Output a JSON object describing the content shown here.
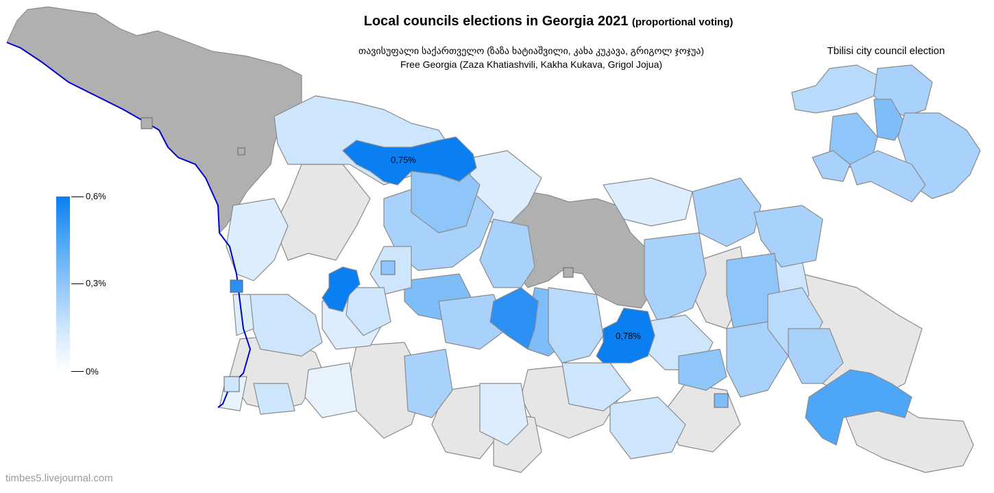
{
  "title": {
    "main": "Local councils elections in Georgia 2021",
    "note": "(proportional voting)"
  },
  "party": {
    "name_ka": "თავისუფალი საქართველო (ზაზა ხატიაშვილი, კახა კუკავა, გრიგოლ ჯოჯუა)",
    "name_en": "Free Georgia (Zaza Khatiashvili, Kakha Kukava, Grigol Jojua)"
  },
  "inset": {
    "title": "Tbilisi city council election"
  },
  "legend": {
    "max_label": "0,6%",
    "mid_label": "0,3%",
    "min_label": "0%",
    "colors": [
      "#ffffff",
      "#cde6fc",
      "#8fc6fa",
      "#4da6f7",
      "#0a7ff2"
    ]
  },
  "annotations": {
    "top_district": "0,75%",
    "center_district": "0,78%"
  },
  "colors": {
    "no_data": "#b0b0b0",
    "zero": "#e6e6e6",
    "coast": "#0000cc",
    "border": "#8a8a8a"
  },
  "watermark": "timbes5.livejournal.com"
}
